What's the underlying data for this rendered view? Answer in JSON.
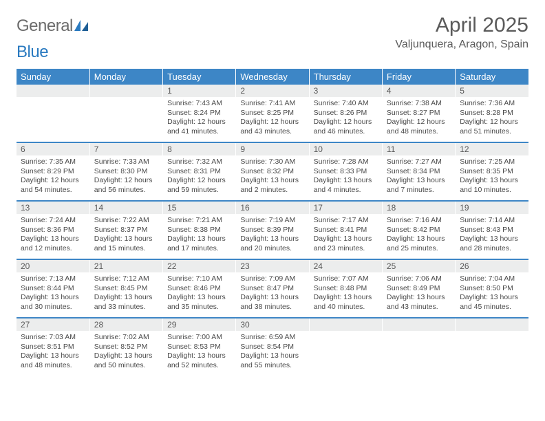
{
  "logo": {
    "left": "General",
    "right": "Blue"
  },
  "header": {
    "month_title": "April 2025",
    "location": "Valjunquera, Aragon, Spain"
  },
  "style": {
    "header_bg": "#3d86c6",
    "header_fg": "#ffffff",
    "numrow_bg": "#eceded",
    "numrow_fg": "#595959",
    "row_divider": "#3d86c6",
    "body_fg": "#4a4a4a",
    "logo_gray": "#6b6b6b",
    "logo_blue": "#2a7ac0",
    "title_fg": "#5a5a5a"
  },
  "days_of_week": [
    "Sunday",
    "Monday",
    "Tuesday",
    "Wednesday",
    "Thursday",
    "Friday",
    "Saturday"
  ],
  "weeks": [
    {
      "nums": [
        "",
        "",
        "1",
        "2",
        "3",
        "4",
        "5"
      ],
      "cells": [
        null,
        null,
        {
          "sunrise": "7:43 AM",
          "sunset": "8:24 PM",
          "daylight": "12 hours and 41 minutes."
        },
        {
          "sunrise": "7:41 AM",
          "sunset": "8:25 PM",
          "daylight": "12 hours and 43 minutes."
        },
        {
          "sunrise": "7:40 AM",
          "sunset": "8:26 PM",
          "daylight": "12 hours and 46 minutes."
        },
        {
          "sunrise": "7:38 AM",
          "sunset": "8:27 PM",
          "daylight": "12 hours and 48 minutes."
        },
        {
          "sunrise": "7:36 AM",
          "sunset": "8:28 PM",
          "daylight": "12 hours and 51 minutes."
        }
      ]
    },
    {
      "nums": [
        "6",
        "7",
        "8",
        "9",
        "10",
        "11",
        "12"
      ],
      "cells": [
        {
          "sunrise": "7:35 AM",
          "sunset": "8:29 PM",
          "daylight": "12 hours and 54 minutes."
        },
        {
          "sunrise": "7:33 AM",
          "sunset": "8:30 PM",
          "daylight": "12 hours and 56 minutes."
        },
        {
          "sunrise": "7:32 AM",
          "sunset": "8:31 PM",
          "daylight": "12 hours and 59 minutes."
        },
        {
          "sunrise": "7:30 AM",
          "sunset": "8:32 PM",
          "daylight": "13 hours and 2 minutes."
        },
        {
          "sunrise": "7:28 AM",
          "sunset": "8:33 PM",
          "daylight": "13 hours and 4 minutes."
        },
        {
          "sunrise": "7:27 AM",
          "sunset": "8:34 PM",
          "daylight": "13 hours and 7 minutes."
        },
        {
          "sunrise": "7:25 AM",
          "sunset": "8:35 PM",
          "daylight": "13 hours and 10 minutes."
        }
      ]
    },
    {
      "nums": [
        "13",
        "14",
        "15",
        "16",
        "17",
        "18",
        "19"
      ],
      "cells": [
        {
          "sunrise": "7:24 AM",
          "sunset": "8:36 PM",
          "daylight": "13 hours and 12 minutes."
        },
        {
          "sunrise": "7:22 AM",
          "sunset": "8:37 PM",
          "daylight": "13 hours and 15 minutes."
        },
        {
          "sunrise": "7:21 AM",
          "sunset": "8:38 PM",
          "daylight": "13 hours and 17 minutes."
        },
        {
          "sunrise": "7:19 AM",
          "sunset": "8:39 PM",
          "daylight": "13 hours and 20 minutes."
        },
        {
          "sunrise": "7:17 AM",
          "sunset": "8:41 PM",
          "daylight": "13 hours and 23 minutes."
        },
        {
          "sunrise": "7:16 AM",
          "sunset": "8:42 PM",
          "daylight": "13 hours and 25 minutes."
        },
        {
          "sunrise": "7:14 AM",
          "sunset": "8:43 PM",
          "daylight": "13 hours and 28 minutes."
        }
      ]
    },
    {
      "nums": [
        "20",
        "21",
        "22",
        "23",
        "24",
        "25",
        "26"
      ],
      "cells": [
        {
          "sunrise": "7:13 AM",
          "sunset": "8:44 PM",
          "daylight": "13 hours and 30 minutes."
        },
        {
          "sunrise": "7:12 AM",
          "sunset": "8:45 PM",
          "daylight": "13 hours and 33 minutes."
        },
        {
          "sunrise": "7:10 AM",
          "sunset": "8:46 PM",
          "daylight": "13 hours and 35 minutes."
        },
        {
          "sunrise": "7:09 AM",
          "sunset": "8:47 PM",
          "daylight": "13 hours and 38 minutes."
        },
        {
          "sunrise": "7:07 AM",
          "sunset": "8:48 PM",
          "daylight": "13 hours and 40 minutes."
        },
        {
          "sunrise": "7:06 AM",
          "sunset": "8:49 PM",
          "daylight": "13 hours and 43 minutes."
        },
        {
          "sunrise": "7:04 AM",
          "sunset": "8:50 PM",
          "daylight": "13 hours and 45 minutes."
        }
      ]
    },
    {
      "nums": [
        "27",
        "28",
        "29",
        "30",
        "",
        "",
        ""
      ],
      "cells": [
        {
          "sunrise": "7:03 AM",
          "sunset": "8:51 PM",
          "daylight": "13 hours and 48 minutes."
        },
        {
          "sunrise": "7:02 AM",
          "sunset": "8:52 PM",
          "daylight": "13 hours and 50 minutes."
        },
        {
          "sunrise": "7:00 AM",
          "sunset": "8:53 PM",
          "daylight": "13 hours and 52 minutes."
        },
        {
          "sunrise": "6:59 AM",
          "sunset": "8:54 PM",
          "daylight": "13 hours and 55 minutes."
        },
        null,
        null,
        null
      ]
    }
  ],
  "labels": {
    "sunrise": "Sunrise:",
    "sunset": "Sunset:",
    "daylight": "Daylight:"
  }
}
